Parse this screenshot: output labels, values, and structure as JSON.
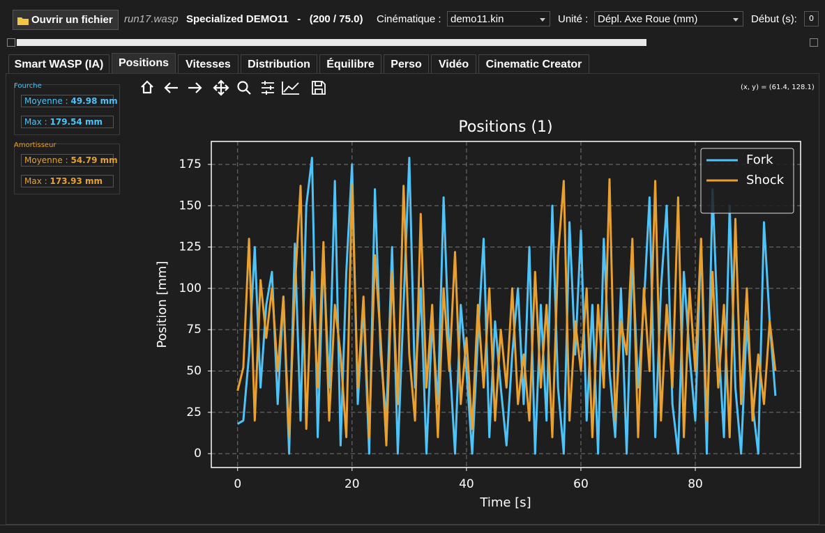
{
  "toolbar": {
    "open_button": "Ouvrir un fichier",
    "file": "run17.wasp",
    "project": "Specialized DEMO11   -   (200 / 75.0)",
    "kin_label": "Cinématique :",
    "kin_value": "demo11.kin",
    "unit_label": "Unité :",
    "unit_value": "Dépl. Axe Roue (mm)",
    "start_label": "Début (s):",
    "start_value": "0"
  },
  "tabs": [
    "Smart WASP (IA)",
    "Positions",
    "Vitesses",
    "Distribution",
    "Équilibre",
    "Perso",
    "Vidéo",
    "Cinematic Creator"
  ],
  "stats": {
    "fork": {
      "title": "Fourche",
      "mean_label": "Moyenne :",
      "mean": "49.98 mm",
      "max_label": "Max :",
      "max": "179.54 mm"
    },
    "shock": {
      "title": "Amortisseur",
      "mean_label": "Moyenne :",
      "mean": "54.79 mm",
      "max_label": "Max :",
      "max": "173.93 mm"
    }
  },
  "coords": "(x, y) = (61.4, 128.1)",
  "chart_data": {
    "type": "line",
    "title": "Positions (1)",
    "x_label": "Time [s]",
    "y_label": "Position [mm]",
    "xlim": [
      -4.6,
      98.4
    ],
    "ylim": [
      -8.4,
      188.9
    ],
    "xticks": [
      0,
      20,
      40,
      60,
      80
    ],
    "yticks": [
      0,
      25,
      50,
      75,
      100,
      125,
      150,
      175
    ],
    "grid": true,
    "legend": "upper right",
    "x": [
      0,
      1,
      2,
      3,
      4,
      5,
      6,
      7,
      8,
      9,
      10,
      11,
      12,
      13,
      14,
      15,
      16,
      17,
      18,
      19,
      20,
      21,
      22,
      23,
      24,
      25,
      26,
      27,
      28,
      29,
      30,
      31,
      32,
      33,
      34,
      35,
      36,
      37,
      38,
      39,
      40,
      41,
      42,
      43,
      44,
      45,
      46,
      47,
      48,
      49,
      50,
      51,
      52,
      53,
      54,
      55,
      56,
      57,
      58,
      59,
      60,
      61,
      62,
      63,
      64,
      65,
      66,
      67,
      68,
      69,
      70,
      71,
      72,
      73,
      74,
      75,
      76,
      77,
      78,
      79,
      80,
      81,
      82,
      83,
      84,
      85,
      86,
      87,
      88,
      89,
      90,
      91,
      92,
      93,
      94
    ],
    "series": [
      {
        "name": "Fork",
        "color": "#4fc3f7",
        "values": [
          18,
          20,
          60,
          125,
          40,
          90,
          110,
          30,
          95,
          0,
          127,
          20,
          150,
          179,
          10,
          120,
          40,
          165,
          5,
          110,
          175,
          30,
          90,
          0,
          160,
          60,
          20,
          125,
          0,
          90,
          179,
          40,
          100,
          0,
          80,
          30,
          155,
          60,
          0,
          90,
          50,
          0,
          70,
          130,
          10,
          80,
          40,
          5,
          60,
          100,
          30,
          125,
          0,
          90,
          20,
          150,
          40,
          0,
          140,
          60,
          135,
          20,
          90,
          0,
          130,
          50,
          10,
          100,
          0,
          120,
          40,
          90,
          155,
          10,
          100,
          150,
          30,
          0,
          110,
          60,
          20,
          130,
          0,
          160,
          70,
          10,
          150,
          40,
          0,
          80,
          30,
          0,
          140,
          80,
          35
        ]
      },
      {
        "name": "Shock",
        "color": "#e8a030",
        "values": [
          38,
          52,
          130,
          20,
          105,
          70,
          100,
          50,
          95,
          10,
          100,
          162,
          15,
          110,
          40,
          128,
          20,
          90,
          60,
          10,
          163,
          40,
          95,
          10,
          120,
          70,
          5,
          110,
          30,
          162,
          60,
          20,
          145,
          40,
          90,
          10,
          100,
          50,
          122,
          30,
          70,
          15,
          90,
          40,
          100,
          20,
          75,
          40,
          100,
          30,
          60,
          20,
          110,
          40,
          90,
          10,
          120,
          165,
          20,
          80,
          50,
          100,
          10,
          90,
          40,
          166,
          20,
          80,
          60,
          130,
          10,
          100,
          50,
          165,
          20,
          90,
          40,
          155,
          10,
          100,
          50,
          130,
          20,
          110,
          40,
          90,
          10,
          142,
          30,
          100,
          20,
          60,
          30,
          80,
          50
        ]
      }
    ]
  }
}
